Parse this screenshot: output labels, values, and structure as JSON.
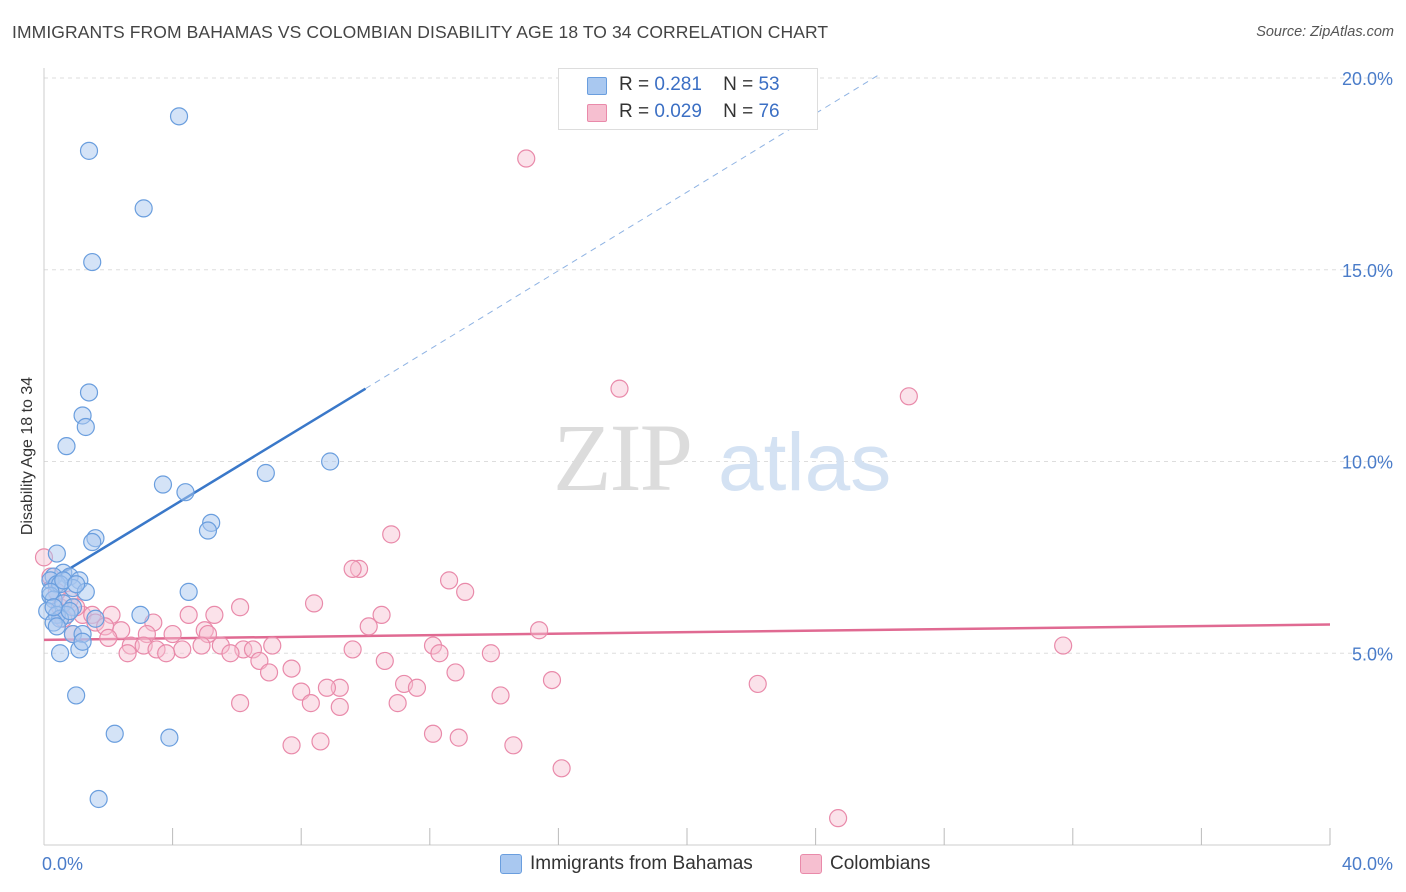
{
  "title": "IMMIGRANTS FROM BAHAMAS VS COLOMBIAN DISABILITY AGE 18 TO 34 CORRELATION CHART",
  "source": "Source: ZipAtlas.com",
  "watermark": {
    "zip": "ZIP",
    "atlas": "atlas"
  },
  "colors": {
    "blue_fill": "#a9c8f0",
    "blue_stroke": "#6a9ede",
    "blue_line": "#3a78c9",
    "pink_fill": "#f6bfd0",
    "pink_stroke": "#e98aaa",
    "pink_line": "#e06a92",
    "tick_text": "#4a7cc9",
    "grid": "#dddddd"
  },
  "legend": {
    "rows": [
      {
        "r_label": "R =",
        "r_value": "0.281",
        "n_label": "N =",
        "n_value": "53"
      },
      {
        "r_label": "R =",
        "r_value": "0.029",
        "n_label": "N =",
        "n_value": "76"
      }
    ]
  },
  "bottom_legend": [
    {
      "label": "Immigrants from Bahamas"
    },
    {
      "label": "Colombians"
    }
  ],
  "chart_data": {
    "type": "scatter",
    "title": "IMMIGRANTS FROM BAHAMAS VS COLOMBIAN DISABILITY AGE 18 TO 34 CORRELATION CHART",
    "xlabel": "",
    "ylabel": "Disability Age 18 to 34",
    "xlim": [
      0,
      40
    ],
    "ylim": [
      0,
      20
    ],
    "x_tick_labels": [
      {
        "value": 0,
        "label": "0.0%"
      },
      {
        "value": 40,
        "label": "40.0%"
      }
    ],
    "y_tick_labels": [
      {
        "value": 5,
        "label": "5.0%"
      },
      {
        "value": 10,
        "label": "10.0%"
      },
      {
        "value": 15,
        "label": "15.0%"
      },
      {
        "value": 20,
        "label": "20.0%"
      }
    ],
    "grid": true,
    "legend_position": "top-center",
    "series": [
      {
        "name": "Immigrants from Bahamas",
        "r": 0.281,
        "n": 53,
        "trend": {
          "x0": 0,
          "y0": 6.8,
          "x1": 10,
          "y1": 11.9,
          "dashed_to_x": 26,
          "dashed_to_y": 20.1
        },
        "points": [
          [
            4.2,
            19.0
          ],
          [
            1.4,
            18.1
          ],
          [
            3.1,
            16.6
          ],
          [
            1.5,
            15.2
          ],
          [
            1.4,
            11.8
          ],
          [
            1.2,
            11.2
          ],
          [
            1.3,
            10.9
          ],
          [
            0.7,
            10.4
          ],
          [
            8.9,
            10.0
          ],
          [
            6.9,
            9.7
          ],
          [
            3.7,
            9.4
          ],
          [
            4.4,
            9.2
          ],
          [
            5.2,
            8.4
          ],
          [
            5.1,
            8.2
          ],
          [
            1.6,
            8.0
          ],
          [
            1.5,
            7.9
          ],
          [
            0.4,
            7.6
          ],
          [
            0.6,
            7.1
          ],
          [
            0.3,
            7.0
          ],
          [
            0.8,
            7.0
          ],
          [
            0.2,
            6.9
          ],
          [
            1.1,
            6.9
          ],
          [
            0.4,
            6.8
          ],
          [
            0.9,
            6.7
          ],
          [
            0.5,
            6.8
          ],
          [
            1.3,
            6.6
          ],
          [
            4.5,
            6.6
          ],
          [
            0.2,
            6.5
          ],
          [
            0.3,
            6.4
          ],
          [
            0.6,
            6.3
          ],
          [
            0.9,
            6.2
          ],
          [
            0.1,
            6.1
          ],
          [
            0.7,
            6.0
          ],
          [
            0.4,
            6.0
          ],
          [
            3.0,
            6.0
          ],
          [
            0.5,
            5.9
          ],
          [
            0.3,
            5.8
          ],
          [
            0.4,
            5.7
          ],
          [
            1.6,
            5.9
          ],
          [
            0.9,
            5.5
          ],
          [
            1.2,
            5.5
          ],
          [
            1.1,
            5.1
          ],
          [
            1.2,
            5.3
          ],
          [
            0.5,
            5.0
          ],
          [
            1.0,
            3.9
          ],
          [
            2.2,
            2.9
          ],
          [
            3.9,
            2.8
          ],
          [
            1.7,
            1.2
          ],
          [
            0.2,
            6.6
          ],
          [
            0.8,
            6.1
          ],
          [
            0.6,
            6.9
          ],
          [
            0.3,
            6.2
          ],
          [
            1.0,
            6.8
          ]
        ]
      },
      {
        "name": "Colombians",
        "r": 0.029,
        "n": 76,
        "trend": {
          "x0": 0,
          "y0": 5.35,
          "x1": 40,
          "y1": 5.75
        },
        "points": [
          [
            15.0,
            17.9
          ],
          [
            17.9,
            11.9
          ],
          [
            26.9,
            11.7
          ],
          [
            10.8,
            8.1
          ],
          [
            9.8,
            7.2
          ],
          [
            9.6,
            7.2
          ],
          [
            0.0,
            7.5
          ],
          [
            12.6,
            6.9
          ],
          [
            13.1,
            6.6
          ],
          [
            8.4,
            6.3
          ],
          [
            6.1,
            6.2
          ],
          [
            0.5,
            6.2
          ],
          [
            0.8,
            6.4
          ],
          [
            1.2,
            6.0
          ],
          [
            1.5,
            6.0
          ],
          [
            2.1,
            6.0
          ],
          [
            4.5,
            6.0
          ],
          [
            5.3,
            6.0
          ],
          [
            10.5,
            6.0
          ],
          [
            10.1,
            5.7
          ],
          [
            1.6,
            5.8
          ],
          [
            1.9,
            5.7
          ],
          [
            3.4,
            5.8
          ],
          [
            5.0,
            5.6
          ],
          [
            2.4,
            5.6
          ],
          [
            3.2,
            5.5
          ],
          [
            4.0,
            5.5
          ],
          [
            5.1,
            5.5
          ],
          [
            15.4,
            5.6
          ],
          [
            2.7,
            5.2
          ],
          [
            3.1,
            5.2
          ],
          [
            3.5,
            5.1
          ],
          [
            4.3,
            5.1
          ],
          [
            4.9,
            5.2
          ],
          [
            5.5,
            5.2
          ],
          [
            6.2,
            5.1
          ],
          [
            6.5,
            5.1
          ],
          [
            7.1,
            5.2
          ],
          [
            9.6,
            5.1
          ],
          [
            12.1,
            5.2
          ],
          [
            13.9,
            5.0
          ],
          [
            31.7,
            5.2
          ],
          [
            2.6,
            5.0
          ],
          [
            3.8,
            5.0
          ],
          [
            5.8,
            5.0
          ],
          [
            6.7,
            4.8
          ],
          [
            7.7,
            4.6
          ],
          [
            12.3,
            5.0
          ],
          [
            10.6,
            4.8
          ],
          [
            12.8,
            4.5
          ],
          [
            7.0,
            4.5
          ],
          [
            15.8,
            4.3
          ],
          [
            22.2,
            4.2
          ],
          [
            11.2,
            4.2
          ],
          [
            11.6,
            4.1
          ],
          [
            9.2,
            4.1
          ],
          [
            8.8,
            4.1
          ],
          [
            8.0,
            4.0
          ],
          [
            14.2,
            3.9
          ],
          [
            6.1,
            3.7
          ],
          [
            8.3,
            3.7
          ],
          [
            9.2,
            3.6
          ],
          [
            11.0,
            3.7
          ],
          [
            12.1,
            2.9
          ],
          [
            12.9,
            2.8
          ],
          [
            8.6,
            2.7
          ],
          [
            7.7,
            2.6
          ],
          [
            14.6,
            2.6
          ],
          [
            16.1,
            2.0
          ],
          [
            24.7,
            0.7
          ],
          [
            0.4,
            6.6
          ],
          [
            1.0,
            6.2
          ],
          [
            0.2,
            7.0
          ],
          [
            0.6,
            5.9
          ],
          [
            2.0,
            5.4
          ],
          [
            0.9,
            5.5
          ]
        ]
      }
    ]
  }
}
